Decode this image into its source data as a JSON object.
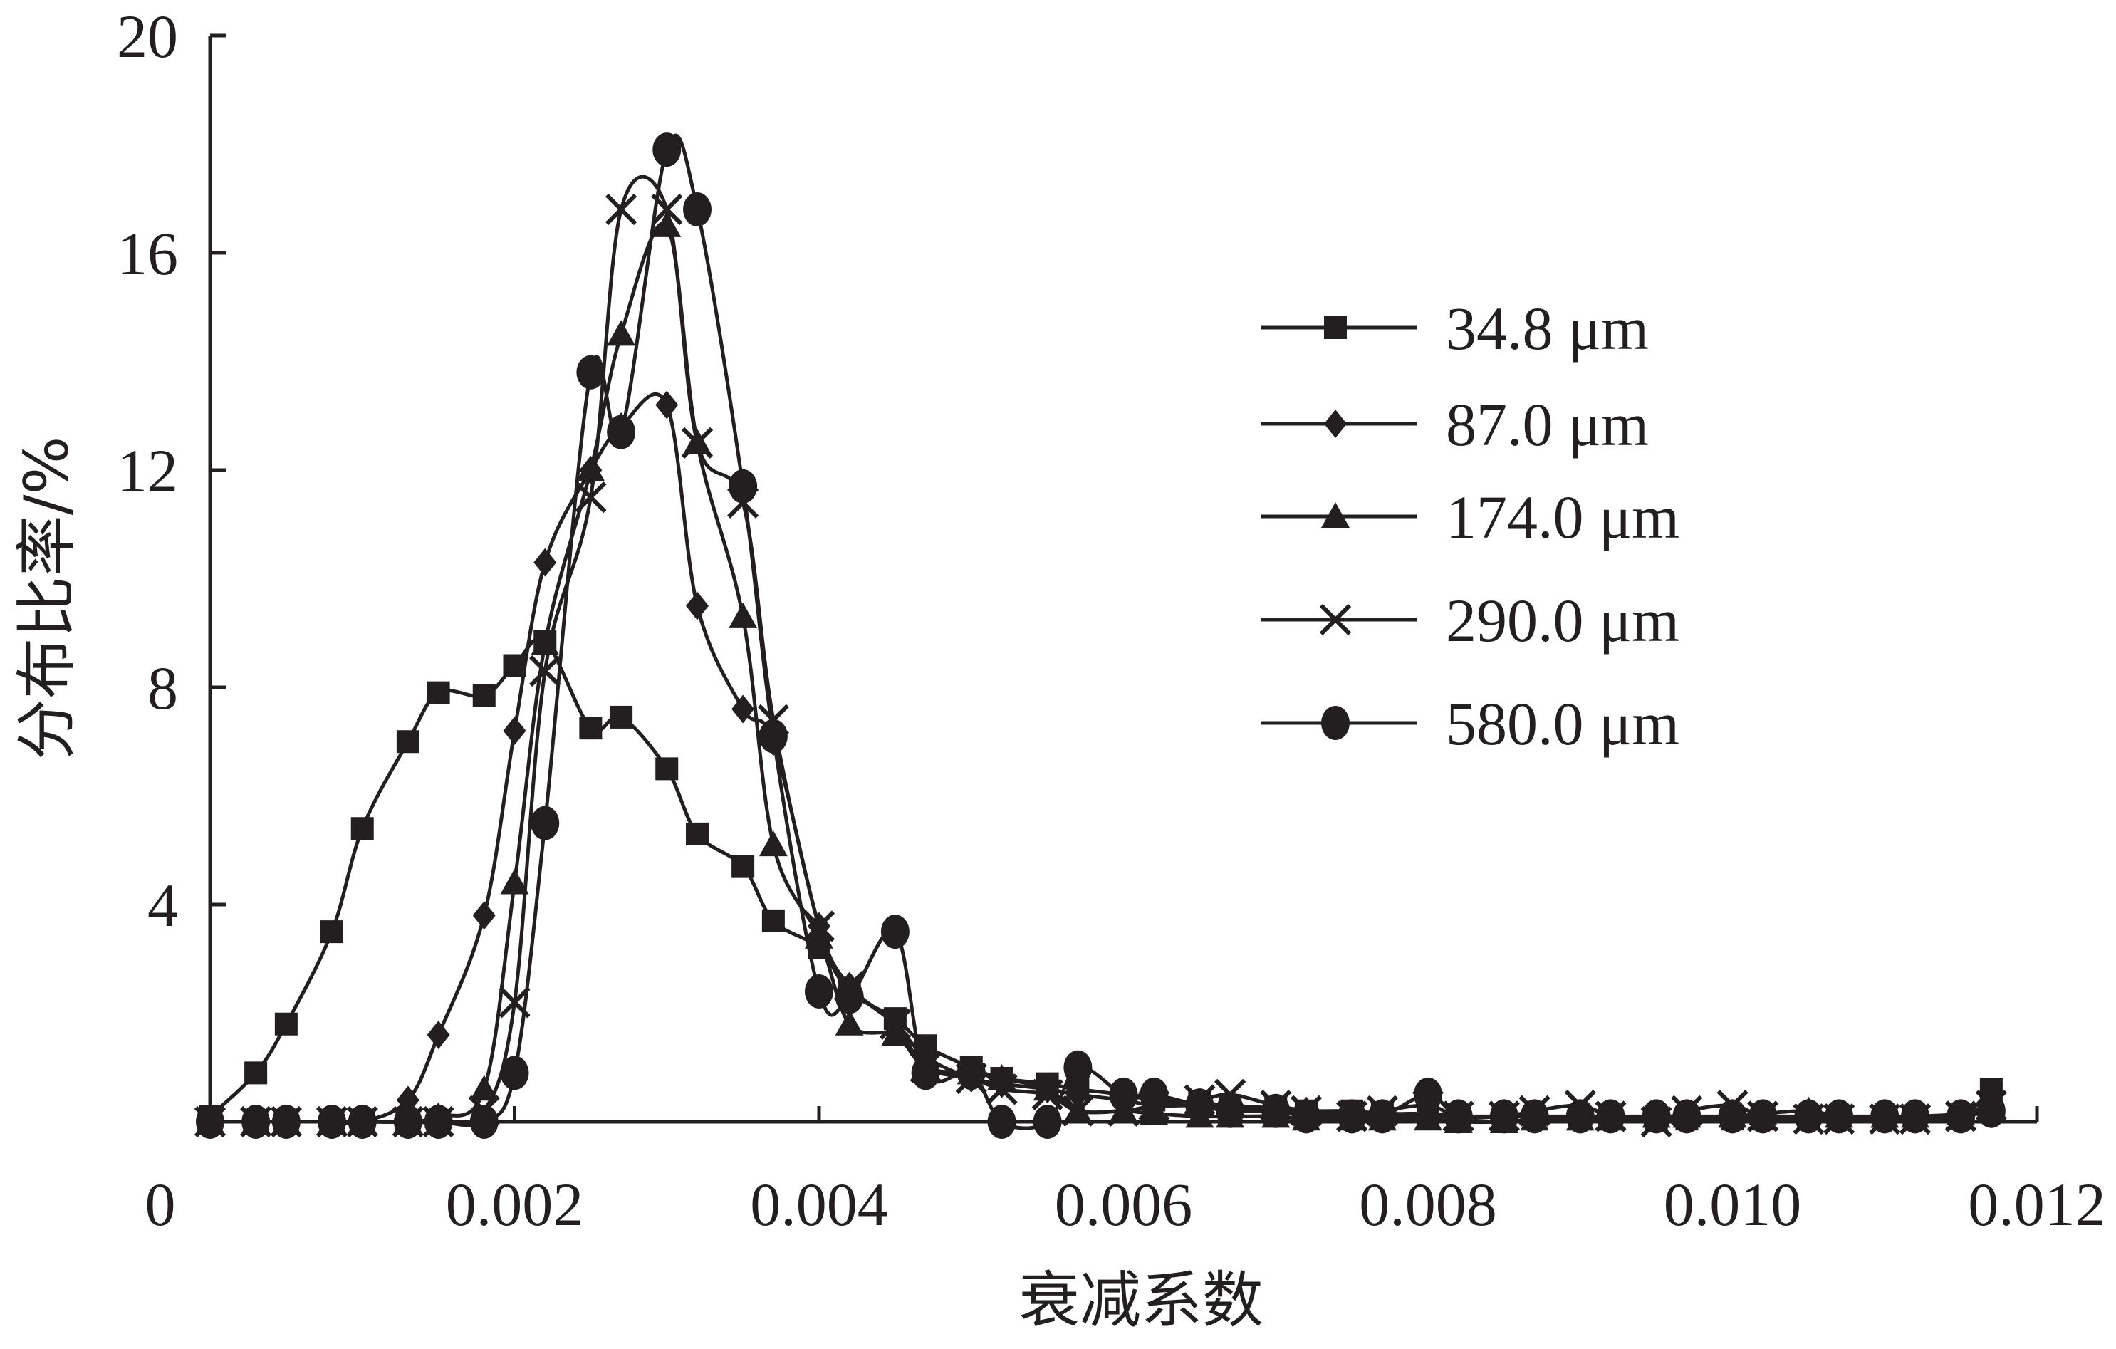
{
  "chart_data": {
    "type": "line",
    "xlabel": "衰减系数",
    "ylabel": "分布比率/%",
    "xlim": [
      0,
      0.012
    ],
    "ylim": [
      0,
      20
    ],
    "x_ticks": [
      0,
      0.002,
      0.004,
      0.006,
      0.008,
      0.01,
      0.012
    ],
    "x_tick_labels": [
      "0",
      "0.002",
      "0.004",
      "0.006",
      "0.008",
      "0.010",
      "0.012"
    ],
    "y_ticks": [
      4,
      8,
      12,
      16,
      20
    ],
    "y_tick_labels": [
      "4",
      "8",
      "12",
      "16",
      "20"
    ],
    "legend_position": "right",
    "grid": false,
    "series": [
      {
        "name": "34.8 μm",
        "marker": "square",
        "points": [
          [
            0.0,
            0.1
          ],
          [
            0.0003,
            0.9
          ],
          [
            0.0005,
            1.8
          ],
          [
            0.0008,
            3.5
          ],
          [
            0.001,
            5.4
          ],
          [
            0.0013,
            7.0
          ],
          [
            0.0015,
            7.9
          ],
          [
            0.0018,
            7.85
          ],
          [
            0.002,
            8.4
          ],
          [
            0.0022,
            8.85
          ],
          [
            0.0025,
            7.25
          ],
          [
            0.0027,
            7.45
          ],
          [
            0.003,
            6.5
          ],
          [
            0.0032,
            5.3
          ],
          [
            0.0035,
            4.7
          ],
          [
            0.0037,
            3.7
          ],
          [
            0.004,
            3.2
          ],
          [
            0.0042,
            2.4
          ],
          [
            0.0045,
            1.9
          ],
          [
            0.0047,
            1.4
          ],
          [
            0.005,
            1.0
          ],
          [
            0.0052,
            0.8
          ],
          [
            0.0055,
            0.7
          ],
          [
            0.0057,
            0.6
          ],
          [
            0.006,
            0.5
          ],
          [
            0.0062,
            0.4
          ],
          [
            0.0065,
            0.35
          ],
          [
            0.0067,
            0.3
          ],
          [
            0.007,
            0.25
          ],
          [
            0.0072,
            0.2
          ],
          [
            0.0075,
            0.2
          ],
          [
            0.0077,
            0.15
          ],
          [
            0.008,
            0.15
          ],
          [
            0.0082,
            0.1
          ],
          [
            0.0085,
            0.1
          ],
          [
            0.0087,
            0.1
          ],
          [
            0.009,
            0.05
          ],
          [
            0.0092,
            0.05
          ],
          [
            0.0095,
            0.05
          ],
          [
            0.0097,
            0.05
          ],
          [
            0.01,
            0.05
          ],
          [
            0.0102,
            0.05
          ],
          [
            0.0105,
            0.05
          ],
          [
            0.0107,
            0.05
          ],
          [
            0.011,
            0.05
          ],
          [
            0.0112,
            0.05
          ],
          [
            0.0115,
            0.1
          ],
          [
            0.0117,
            0.6
          ]
        ]
      },
      {
        "name": "87.0 μm",
        "marker": "diamond",
        "points": [
          [
            0.0,
            0.0
          ],
          [
            0.0003,
            0.0
          ],
          [
            0.0005,
            0.0
          ],
          [
            0.0008,
            0.0
          ],
          [
            0.001,
            0.0
          ],
          [
            0.0013,
            0.4
          ],
          [
            0.0015,
            1.6
          ],
          [
            0.0018,
            3.8
          ],
          [
            0.002,
            7.2
          ],
          [
            0.0022,
            10.3
          ],
          [
            0.0025,
            12.0
          ],
          [
            0.0027,
            12.8
          ],
          [
            0.003,
            13.2
          ],
          [
            0.0032,
            9.5
          ],
          [
            0.0035,
            7.6
          ],
          [
            0.0037,
            7.0
          ],
          [
            0.004,
            3.6
          ],
          [
            0.0042,
            2.5
          ],
          [
            0.0045,
            1.8
          ],
          [
            0.0047,
            1.2
          ],
          [
            0.005,
            0.8
          ],
          [
            0.0052,
            0.7
          ],
          [
            0.0055,
            0.6
          ],
          [
            0.0057,
            0.5
          ],
          [
            0.006,
            0.4
          ],
          [
            0.0062,
            0.3
          ],
          [
            0.0065,
            0.3
          ],
          [
            0.0067,
            0.25
          ],
          [
            0.007,
            0.2
          ],
          [
            0.0072,
            0.2
          ],
          [
            0.0075,
            0.15
          ],
          [
            0.0077,
            0.1
          ],
          [
            0.008,
            0.1
          ],
          [
            0.0082,
            0.1
          ],
          [
            0.0085,
            0.1
          ],
          [
            0.0087,
            0.1
          ],
          [
            0.009,
            0.05
          ],
          [
            0.0092,
            0.05
          ],
          [
            0.0095,
            0.05
          ],
          [
            0.0097,
            0.05
          ],
          [
            0.01,
            0.05
          ],
          [
            0.0102,
            0.05
          ],
          [
            0.0105,
            0.05
          ],
          [
            0.0107,
            0.05
          ],
          [
            0.011,
            0.05
          ],
          [
            0.0112,
            0.05
          ],
          [
            0.0115,
            0.05
          ],
          [
            0.0117,
            0.3
          ]
        ]
      },
      {
        "name": "174.0 μm",
        "marker": "triangle",
        "points": [
          [
            0.0,
            0.0
          ],
          [
            0.0003,
            0.0
          ],
          [
            0.0005,
            0.0
          ],
          [
            0.0008,
            0.0
          ],
          [
            0.001,
            0.0
          ],
          [
            0.0013,
            0.0
          ],
          [
            0.0015,
            0.1
          ],
          [
            0.0018,
            0.6
          ],
          [
            0.002,
            4.4
          ],
          [
            0.0022,
            8.8
          ],
          [
            0.0025,
            12.0
          ],
          [
            0.0027,
            14.5
          ],
          [
            0.003,
            16.5
          ],
          [
            0.0032,
            12.5
          ],
          [
            0.0035,
            9.3
          ],
          [
            0.0037,
            5.1
          ],
          [
            0.004,
            3.4
          ],
          [
            0.0042,
            1.8
          ],
          [
            0.0045,
            1.6
          ],
          [
            0.0047,
            1.0
          ],
          [
            0.005,
            0.9
          ],
          [
            0.0052,
            0.8
          ],
          [
            0.0055,
            0.6
          ],
          [
            0.0057,
            0.2
          ],
          [
            0.006,
            0.2
          ],
          [
            0.0062,
            0.15
          ],
          [
            0.0065,
            0.1
          ],
          [
            0.0067,
            0.1
          ],
          [
            0.007,
            0.1
          ],
          [
            0.0072,
            0.05
          ],
          [
            0.0075,
            0.05
          ],
          [
            0.0077,
            0.05
          ],
          [
            0.008,
            0.05
          ],
          [
            0.0082,
            0.0
          ],
          [
            0.0085,
            0.0
          ],
          [
            0.0087,
            0.05
          ],
          [
            0.009,
            0.05
          ],
          [
            0.0092,
            0.05
          ],
          [
            0.0095,
            0.1
          ],
          [
            0.0097,
            0.1
          ],
          [
            0.01,
            0.1
          ],
          [
            0.0102,
            0.15
          ],
          [
            0.0105,
            0.2
          ],
          [
            0.0107,
            0.1
          ],
          [
            0.011,
            0.1
          ],
          [
            0.0112,
            0.1
          ],
          [
            0.0115,
            0.15
          ],
          [
            0.0117,
            0.3
          ]
        ]
      },
      {
        "name": "290.0 μm",
        "marker": "x",
        "points": [
          [
            0.0,
            0.0
          ],
          [
            0.0003,
            0.0
          ],
          [
            0.0005,
            0.0
          ],
          [
            0.0008,
            0.0
          ],
          [
            0.001,
            0.0
          ],
          [
            0.0013,
            0.0
          ],
          [
            0.0015,
            0.0
          ],
          [
            0.0018,
            0.2
          ],
          [
            0.002,
            2.2
          ],
          [
            0.0022,
            8.3
          ],
          [
            0.0025,
            11.5
          ],
          [
            0.0027,
            16.8
          ],
          [
            0.003,
            16.8
          ],
          [
            0.0032,
            12.5
          ],
          [
            0.0035,
            11.4
          ],
          [
            0.0037,
            7.4
          ],
          [
            0.004,
            3.6
          ],
          [
            0.0042,
            2.5
          ],
          [
            0.0045,
            1.8
          ],
          [
            0.0047,
            1.0
          ],
          [
            0.005,
            0.8
          ],
          [
            0.0052,
            0.6
          ],
          [
            0.0055,
            0.5
          ],
          [
            0.0057,
            0.2
          ],
          [
            0.006,
            0.2
          ],
          [
            0.0062,
            0.3
          ],
          [
            0.0065,
            0.4
          ],
          [
            0.0067,
            0.5
          ],
          [
            0.007,
            0.3
          ],
          [
            0.0072,
            0.2
          ],
          [
            0.0075,
            0.1
          ],
          [
            0.0077,
            0.2
          ],
          [
            0.008,
            0.3
          ],
          [
            0.0082,
            0.1
          ],
          [
            0.0085,
            0.1
          ],
          [
            0.0087,
            0.2
          ],
          [
            0.009,
            0.3
          ],
          [
            0.0092,
            0.1
          ],
          [
            0.0095,
            0.0
          ],
          [
            0.0097,
            0.2
          ],
          [
            0.01,
            0.3
          ],
          [
            0.0102,
            0.1
          ],
          [
            0.0105,
            0.05
          ],
          [
            0.0107,
            0.05
          ],
          [
            0.011,
            0.05
          ],
          [
            0.0112,
            0.05
          ],
          [
            0.0115,
            0.1
          ],
          [
            0.0117,
            0.3
          ]
        ]
      },
      {
        "name": "580.0 μm",
        "marker": "circle",
        "points": [
          [
            0.0,
            0.0
          ],
          [
            0.0003,
            0.0
          ],
          [
            0.0005,
            0.0
          ],
          [
            0.0008,
            0.0
          ],
          [
            0.001,
            0.0
          ],
          [
            0.0013,
            0.0
          ],
          [
            0.0015,
            0.0
          ],
          [
            0.0018,
            0.0
          ],
          [
            0.002,
            0.9
          ],
          [
            0.0022,
            5.5
          ],
          [
            0.0025,
            13.8
          ],
          [
            0.0027,
            12.7
          ],
          [
            0.003,
            17.9
          ],
          [
            0.0032,
            16.8
          ],
          [
            0.0035,
            11.7
          ],
          [
            0.0037,
            7.1
          ],
          [
            0.004,
            2.4
          ],
          [
            0.0042,
            2.3
          ],
          [
            0.0045,
            3.5
          ],
          [
            0.0047,
            0.9
          ],
          [
            0.005,
            0.9
          ],
          [
            0.0052,
            0.0
          ],
          [
            0.0055,
            0.0
          ],
          [
            0.0057,
            1.0
          ],
          [
            0.006,
            0.5
          ],
          [
            0.0062,
            0.5
          ],
          [
            0.0065,
            0.3
          ],
          [
            0.0067,
            0.2
          ],
          [
            0.007,
            0.2
          ],
          [
            0.0072,
            0.1
          ],
          [
            0.0075,
            0.1
          ],
          [
            0.0077,
            0.1
          ],
          [
            0.008,
            0.5
          ],
          [
            0.0082,
            0.1
          ],
          [
            0.0085,
            0.1
          ],
          [
            0.0087,
            0.1
          ],
          [
            0.009,
            0.1
          ],
          [
            0.0092,
            0.1
          ],
          [
            0.0095,
            0.1
          ],
          [
            0.0097,
            0.1
          ],
          [
            0.01,
            0.1
          ],
          [
            0.0102,
            0.1
          ],
          [
            0.0105,
            0.1
          ],
          [
            0.0107,
            0.1
          ],
          [
            0.011,
            0.1
          ],
          [
            0.0112,
            0.1
          ],
          [
            0.0115,
            0.1
          ],
          [
            0.0117,
            0.2
          ]
        ]
      }
    ]
  }
}
